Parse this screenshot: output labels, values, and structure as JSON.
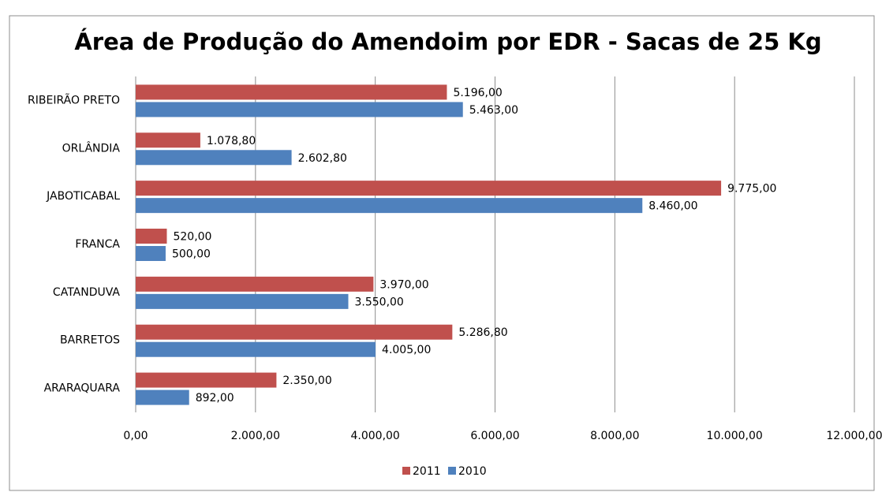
{
  "chart_data": {
    "type": "barh",
    "title": "Área de Produção do Amendoim por EDR - Sacas de 25 Kg",
    "categories": [
      "RIBEIRÃO PRETO",
      "ORLÂNDIA",
      "JABOTICABAL",
      "FRANCA",
      "CATANDUVA",
      "BARRETOS",
      "ARARAQUARA"
    ],
    "series": [
      {
        "name": "2011",
        "color": "#c0504d",
        "values": [
          5196,
          1078.8,
          9775,
          520,
          3970,
          5286.8,
          2350
        ],
        "value_labels": [
          "5.196,00",
          "1.078,80",
          "9.775,00",
          "520,00",
          "3.970,00",
          "5.286,80",
          "2.350,00"
        ]
      },
      {
        "name": "2010",
        "color": "#4f81bd",
        "values": [
          5463,
          2602.8,
          8460,
          500,
          3550,
          4005,
          892
        ],
        "value_labels": [
          "5.463,00",
          "2.602,80",
          "8.460,00",
          "500,00",
          "3.550,00",
          "4.005,00",
          "892,00"
        ]
      }
    ],
    "xlim": [
      0,
      12000
    ],
    "xticks": [
      {
        "value": 0,
        "label": "0,00"
      },
      {
        "value": 2000,
        "label": "2.000,00"
      },
      {
        "value": 4000,
        "label": "4.000,00"
      },
      {
        "value": 6000,
        "label": "6.000,00"
      },
      {
        "value": 8000,
        "label": "8.000,00"
      },
      {
        "value": 10000,
        "label": "10.000,00"
      },
      {
        "value": 12000,
        "label": "12.000,00"
      }
    ],
    "grid": true,
    "legend": "bottom"
  }
}
